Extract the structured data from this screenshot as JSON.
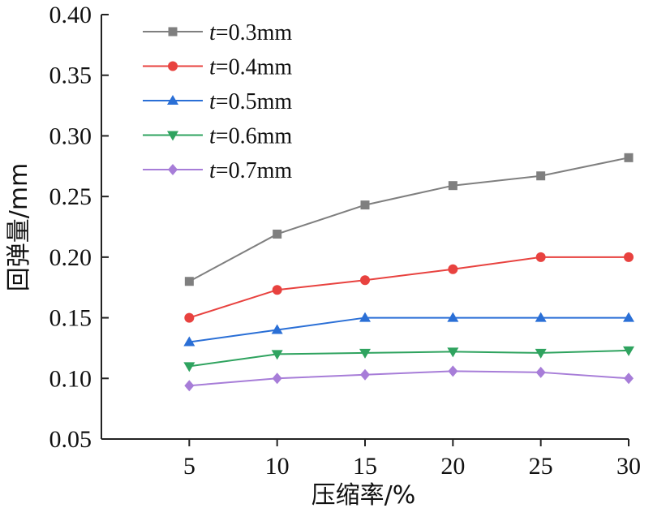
{
  "chart_data": {
    "type": "line",
    "xlabel": "压缩率/%",
    "ylabel": "回弹量/mm",
    "x": [
      5,
      10,
      15,
      20,
      25,
      30
    ],
    "xlim": [
      0,
      30
    ],
    "ylim": [
      0.05,
      0.4
    ],
    "x_ticks": [
      5,
      10,
      15,
      20,
      25,
      30
    ],
    "y_ticks": [
      "0.05",
      "0.10",
      "0.15",
      "0.20",
      "0.25",
      "0.30",
      "0.35",
      "0.40"
    ],
    "grid": false,
    "legend_position": "top-left",
    "series": [
      {
        "name": "t=0.3mm",
        "var": "t",
        "rest": "=0.3mm",
        "color": "#7f7f7f",
        "marker": "square",
        "values": [
          0.18,
          0.219,
          0.243,
          0.259,
          0.267,
          0.282
        ]
      },
      {
        "name": "t=0.4mm",
        "var": "t",
        "rest": "=0.4mm",
        "color": "#e8423f",
        "marker": "circle",
        "values": [
          0.15,
          0.173,
          0.181,
          0.19,
          0.2,
          0.2
        ]
      },
      {
        "name": "t=0.5mm",
        "var": "t",
        "rest": "=0.5mm",
        "color": "#2a6fd6",
        "marker": "triangle-up",
        "values": [
          0.13,
          0.14,
          0.15,
          0.15,
          0.15,
          0.15
        ]
      },
      {
        "name": "t=0.6mm",
        "var": "t",
        "rest": "=0.6mm",
        "color": "#2fa35f",
        "marker": "triangle-down",
        "values": [
          0.11,
          0.12,
          0.121,
          0.122,
          0.121,
          0.123
        ]
      },
      {
        "name": "t=0.7mm",
        "var": "t",
        "rest": "=0.7mm",
        "color": "#a77dd8",
        "marker": "diamond",
        "values": [
          0.094,
          0.1,
          0.103,
          0.106,
          0.105,
          0.1
        ]
      }
    ]
  }
}
